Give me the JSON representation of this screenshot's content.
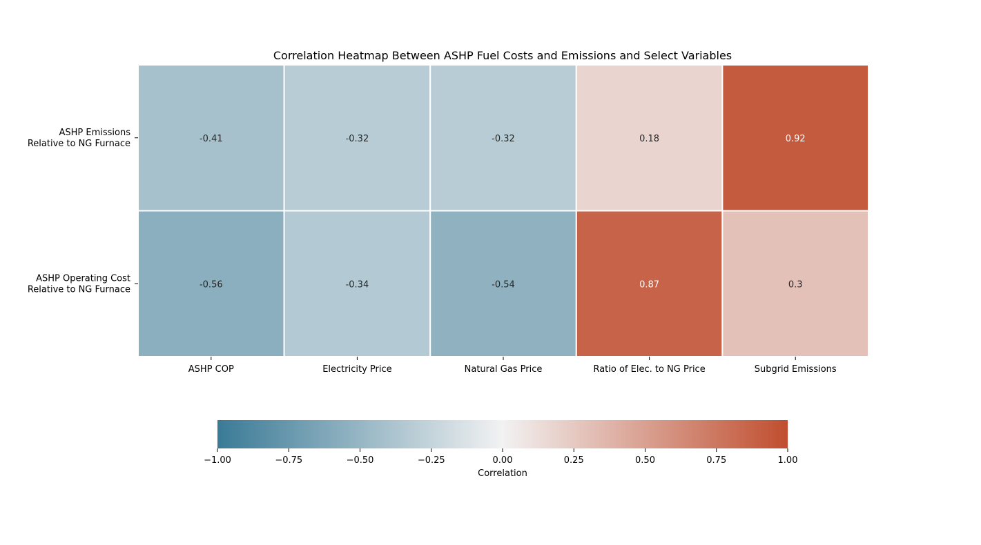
{
  "chart_data": {
    "type": "heatmap",
    "title": "Correlation Heatmap Between ASHP Fuel Costs and Emissions and Select Variables",
    "rows": [
      "ASHP Emissions\nRelative to NG Furnace",
      "ASHP Operating Cost\nRelative to NG Furnace"
    ],
    "columns": [
      "ASHP COP",
      "Electricity Price",
      "Natural Gas Price",
      "Ratio of Elec. to NG Price",
      "Subgrid Emissions"
    ],
    "values": [
      [
        -0.41,
        -0.32,
        -0.32,
        0.18,
        0.92
      ],
      [
        -0.56,
        -0.34,
        -0.54,
        0.87,
        0.3
      ]
    ],
    "colorbar": {
      "label": "Correlation",
      "range": [
        -1,
        1
      ],
      "ticks": [
        -1.0,
        -0.75,
        -0.5,
        -0.25,
        0.0,
        0.25,
        0.5,
        0.75,
        1.0
      ],
      "tick_labels": [
        "−1.00",
        "−0.75",
        "−0.50",
        "−0.25",
        "0.00",
        "0.25",
        "0.50",
        "0.75",
        "1.00"
      ],
      "orientation": "horizontal",
      "placement": "bottom"
    },
    "colormap": {
      "negative": "#3a7a96",
      "center": "#f2f2f2",
      "positive": "#c04e2f"
    },
    "annotations": true,
    "cell_border_color": "#ffffff",
    "grid": false
  }
}
